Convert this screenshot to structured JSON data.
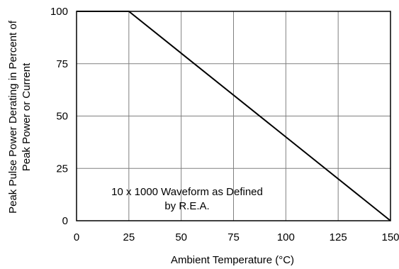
{
  "chart_data": {
    "type": "line",
    "title": "",
    "xlabel": "Ambient Temperature (°C)",
    "ylabel_lines": [
      "Peak Pulse Power Derating in Percent of",
      "Peak Power or Current"
    ],
    "xlim": [
      0,
      150
    ],
    "ylim": [
      0,
      100
    ],
    "xticks": [
      0,
      25,
      50,
      75,
      100,
      125,
      150
    ],
    "yticks": [
      0,
      25,
      50,
      75,
      100
    ],
    "grid": true,
    "legend": "none",
    "series": [
      {
        "x": [
          0,
          25,
          150
        ],
        "y": [
          100,
          100,
          0
        ]
      }
    ],
    "annotation_lines": [
      "10 x 1000 Waveform as Defined",
      "by R.E.A."
    ],
    "colors": {
      "line": "#000000",
      "grid": "#808080",
      "frame": "#000000"
    }
  }
}
